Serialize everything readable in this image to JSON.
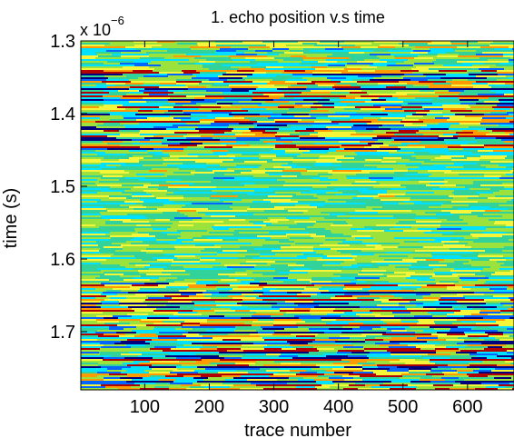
{
  "chart_data": {
    "type": "heatmap",
    "title": "1. echo position v.s time",
    "xlabel": "trace number",
    "ylabel": "time (s)",
    "y_scale_multiplier": {
      "base": "x 10",
      "exponent": "−6"
    },
    "xlim": [
      1,
      672
    ],
    "ylim": [
      1.3,
      1.78
    ],
    "y_reversed": true,
    "x_ticks": [
      100,
      200,
      300,
      400,
      500,
      600
    ],
    "x_tick_labels": [
      "100",
      "200",
      "300",
      "400",
      "500",
      "600"
    ],
    "y_ticks": [
      1.3,
      1.4,
      1.5,
      1.6,
      1.7
    ],
    "y_tick_labels": [
      "1.3",
      "1.4",
      "1.5",
      "1.6",
      "1.7"
    ],
    "colormap": [
      "#00007f",
      "#0066ff",
      "#00e0ff",
      "#32d39a",
      "#9be23c",
      "#f5f53a",
      "#ff9a00",
      "#b00000"
    ],
    "background_color": "#36c7a0",
    "band_structure": [
      {
        "from": 1.3,
        "to": 1.335,
        "amplitude": 0.45
      },
      {
        "from": 1.335,
        "to": 1.45,
        "amplitude": 1.0
      },
      {
        "from": 1.45,
        "to": 1.63,
        "amplitude": 0.25
      },
      {
        "from": 1.63,
        "to": 1.78,
        "amplitude": 1.0
      }
    ],
    "grid": false,
    "legend": "none"
  }
}
